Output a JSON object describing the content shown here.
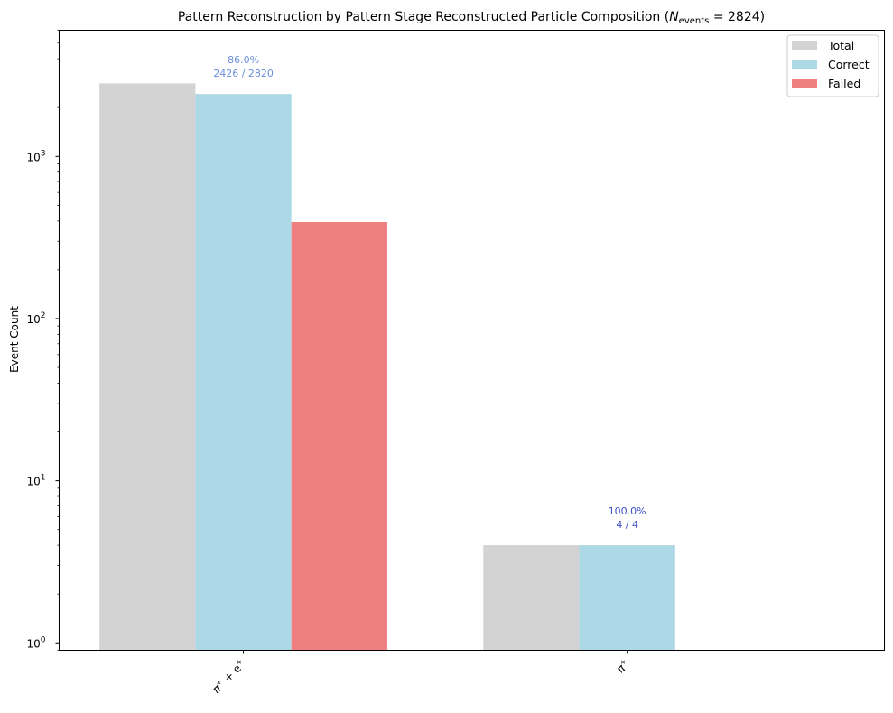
{
  "chart_data": {
    "type": "bar",
    "title": "Pattern Reconstruction by Pattern Stage Reconstructed Particle Composition (",
    "title_n": "N",
    "title_n_sub": "events",
    "title_n_value": " = 2824)",
    "xlabel": "",
    "ylabel": "Event Count",
    "yscale": "log",
    "ylim": [
      0.9,
      6000
    ],
    "yticks": [
      {
        "value": 1,
        "base": "10",
        "exp": "0"
      },
      {
        "value": 10,
        "base": "10",
        "exp": "1"
      },
      {
        "value": 100,
        "base": "10",
        "exp": "2"
      },
      {
        "value": 1000,
        "base": "10",
        "exp": "3"
      }
    ],
    "categories": [
      {
        "base": "π",
        "sup": "+",
        "mid": " + e",
        "sup2": "+"
      },
      {
        "base": "π",
        "sup": "+",
        "mid": "",
        "sup2": ""
      }
    ],
    "series": [
      {
        "name": "Total",
        "color": "#d3d3d3",
        "values": [
          2820,
          4
        ]
      },
      {
        "name": "Correct",
        "color": "#add8e6",
        "values": [
          2426,
          4
        ]
      },
      {
        "name": "Failed",
        "color": "#f08080",
        "values": [
          394,
          0
        ]
      }
    ],
    "annotations": [
      {
        "category": 0,
        "line1": "86.0%",
        "line2": "2426 / 2820",
        "color": "#6a8fd8"
      },
      {
        "category": 1,
        "line1": "100.0%",
        "line2": "4 / 4",
        "color": "#3d4fc4"
      }
    ],
    "legend": {
      "position": "top-right",
      "entries": [
        "Total",
        "Correct",
        "Failed"
      ]
    },
    "grid": false
  }
}
